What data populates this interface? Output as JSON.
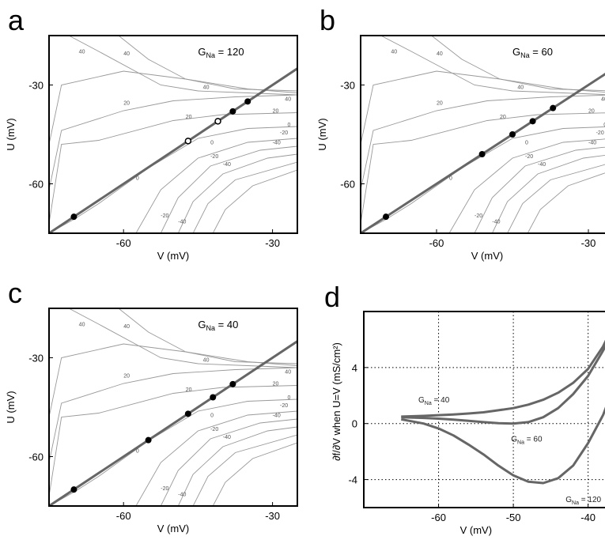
{
  "chart_data": [
    {
      "panel": "a",
      "type": "contour",
      "gna_label": "120",
      "xlabel": "V (mV)",
      "ylabel": "U (mV)",
      "xlim": [
        -75,
        -25
      ],
      "ylim": [
        -75,
        -15
      ],
      "xticks": [
        -60,
        -30
      ],
      "yticks": [
        -30,
        -60
      ],
      "diagonal": "U=V",
      "contour_levels": [
        "40",
        "20",
        "0",
        "-20",
        "-40"
      ],
      "filled_points": [
        [
          -70,
          -70
        ],
        [
          -38,
          -38
        ],
        [
          -35,
          -35
        ]
      ],
      "open_points": [
        [
          -47,
          -47
        ],
        [
          -41,
          -41
        ]
      ]
    },
    {
      "panel": "b",
      "type": "contour",
      "gna_label": "60",
      "xlabel": "V (mV)",
      "ylabel": "U (mV)",
      "xlim": [
        -75,
        -25
      ],
      "ylim": [
        -75,
        -15
      ],
      "xticks": [
        -60,
        -30
      ],
      "yticks": [
        -30,
        -60
      ],
      "diagonal": "U=V",
      "contour_levels": [
        "40",
        "20",
        "0",
        "-20",
        "-40"
      ],
      "filled_points": [
        [
          -70,
          -70
        ],
        [
          -51,
          -51
        ],
        [
          -45,
          -45
        ],
        [
          -41,
          -41
        ],
        [
          -37,
          -37
        ]
      ],
      "open_points": []
    },
    {
      "panel": "c",
      "type": "contour",
      "gna_label": "40",
      "xlabel": "V (mV)",
      "ylabel": "U (mV)",
      "xlim": [
        -75,
        -25
      ],
      "ylim": [
        -75,
        -15
      ],
      "xticks": [
        -60,
        -30
      ],
      "yticks": [
        -30,
        -60
      ],
      "diagonal": "U=V",
      "contour_levels": [
        "40",
        "20",
        "0",
        "-20",
        "-40"
      ],
      "filled_points": [
        [
          -70,
          -70
        ],
        [
          -55,
          -55
        ],
        [
          -47,
          -47
        ],
        [
          -42,
          -42
        ],
        [
          -38,
          -38
        ]
      ],
      "open_points": []
    },
    {
      "panel": "d",
      "type": "line",
      "xlabel": "V (mV)",
      "ylabel": "∂f/∂V when U=V (mS/cm²)",
      "xlim": [
        -70,
        -37
      ],
      "ylim": [
        -6,
        8
      ],
      "xticks": [
        -60,
        -50,
        -40
      ],
      "yticks": [
        4,
        0,
        -4
      ],
      "grid": true,
      "series": [
        {
          "name": "40",
          "x": [
            -65,
            -62,
            -60,
            -58,
            -56,
            -54,
            -52,
            -50,
            -48,
            -46,
            -44,
            -42,
            -40,
            -38,
            -37
          ],
          "y": [
            0.5,
            0.55,
            0.6,
            0.65,
            0.72,
            0.8,
            0.95,
            1.1,
            1.35,
            1.7,
            2.2,
            2.9,
            3.9,
            5.5,
            6.6
          ]
        },
        {
          "name": "60",
          "x": [
            -65,
            -62,
            -60,
            -58,
            -56,
            -54,
            -52,
            -50,
            -48,
            -46,
            -44,
            -42,
            -40,
            -38,
            -37
          ],
          "y": [
            0.45,
            0.4,
            0.35,
            0.28,
            0.2,
            0.1,
            0.03,
            0.0,
            0.1,
            0.45,
            1.1,
            2.1,
            3.4,
            5.2,
            6.2
          ]
        },
        {
          "name": "120",
          "x": [
            -65,
            -62,
            -60,
            -58,
            -56,
            -54,
            -52,
            -50,
            -48,
            -46,
            -44,
            -42,
            -40,
            -38,
            -37
          ],
          "y": [
            0.3,
            0.0,
            -0.35,
            -0.85,
            -1.5,
            -2.2,
            -3.0,
            -3.7,
            -4.15,
            -4.25,
            -3.9,
            -3.0,
            -1.4,
            0.6,
            2.0
          ]
        }
      ]
    }
  ],
  "labels": {
    "a": "a",
    "b": "b",
    "c": "c",
    "d": "d",
    "gna_prefix_G": "G",
    "gna_prefix_sub": "Na",
    "gna_eq": " = "
  },
  "colors": {
    "curve": "#666666",
    "contour": "#999999",
    "axis": "#000000",
    "grid": "#000000"
  }
}
